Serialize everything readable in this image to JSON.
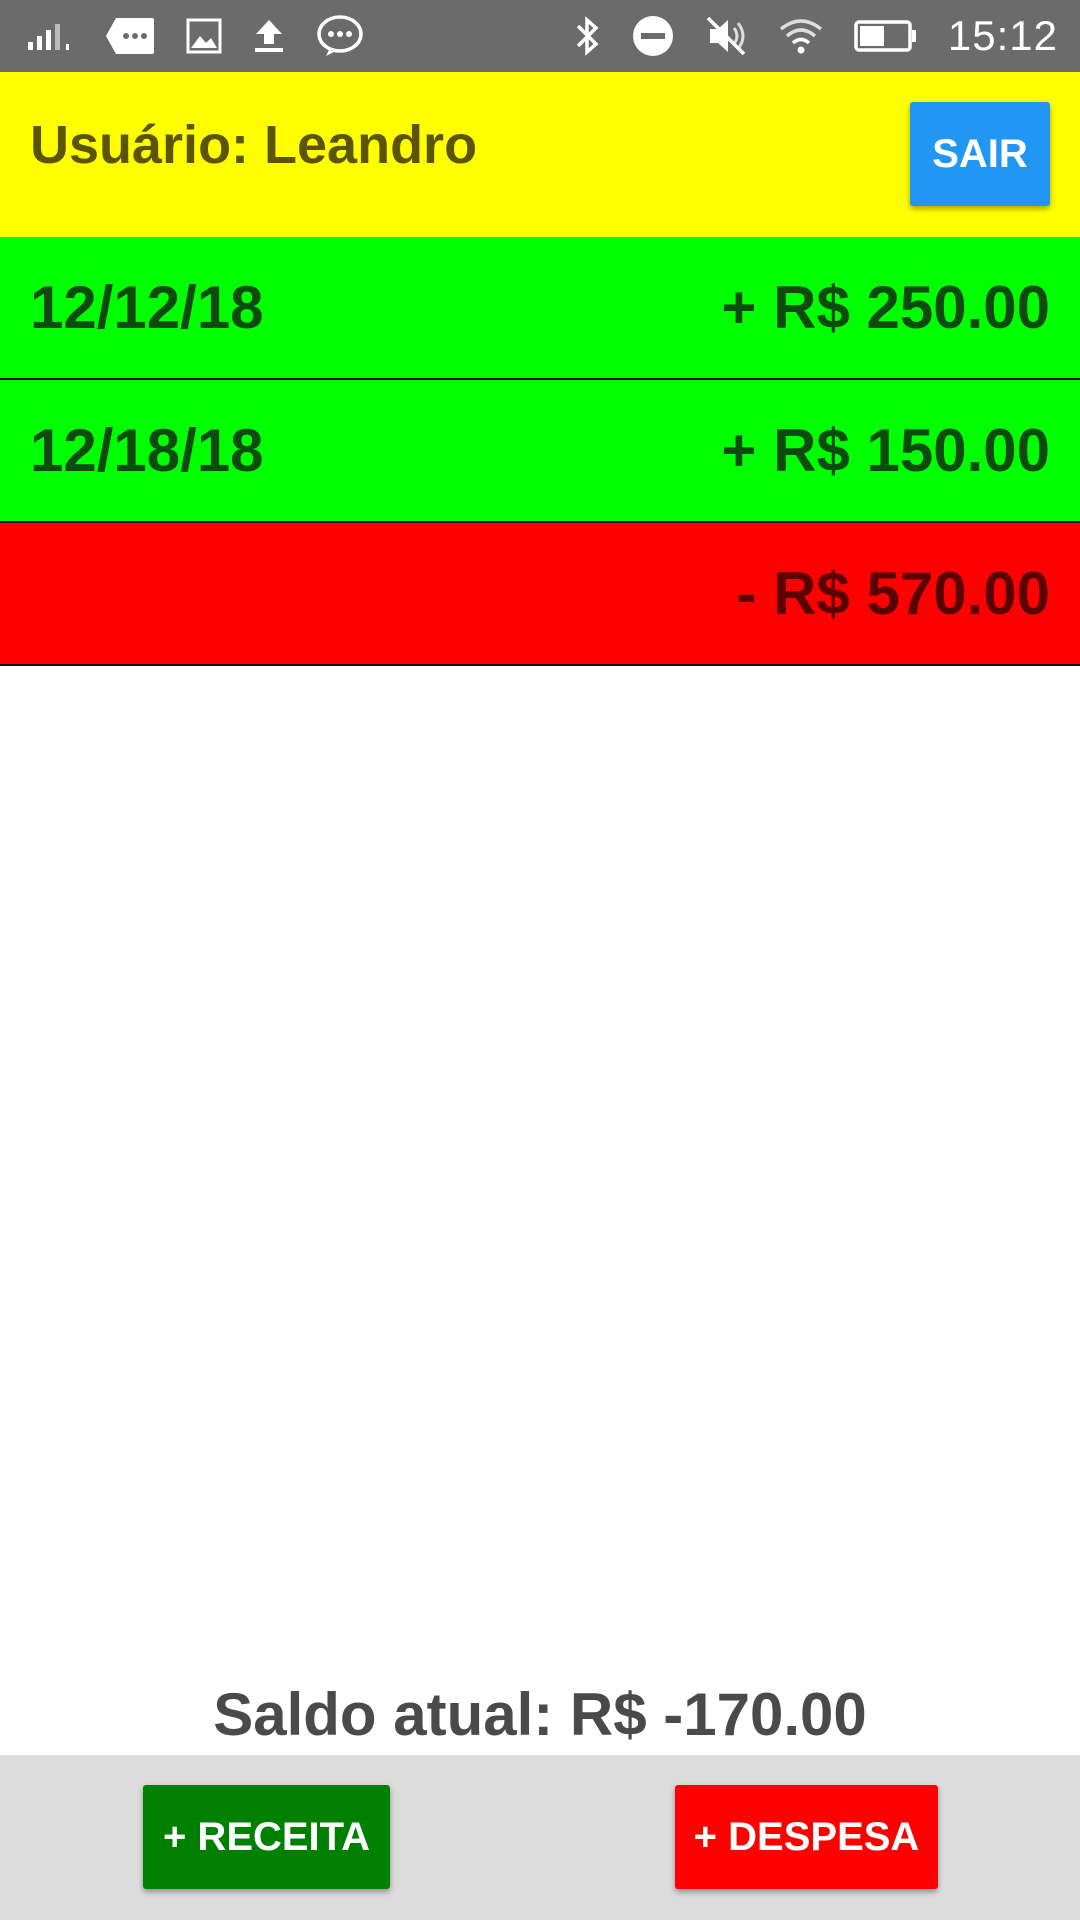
{
  "status_bar": {
    "time": "15:12",
    "icons_left": [
      "signal-icon",
      "message-icon",
      "image-icon",
      "upload-icon",
      "chat-icon"
    ],
    "icons_right": [
      "bluetooth-icon",
      "do-not-disturb-icon",
      "mute-icon",
      "wifi-icon",
      "battery-icon"
    ]
  },
  "header": {
    "user_label": "Usuário: Leandro",
    "logout_label": "SAIR",
    "background": "#ffff00",
    "button_color": "#2196f3"
  },
  "entries": [
    {
      "type": "income",
      "date": "12/12/18",
      "amount": "+ R$ 250.00",
      "color": "#00ff00"
    },
    {
      "type": "income",
      "date": "12/18/18",
      "amount": "+ R$ 150.00",
      "color": "#00ff00"
    },
    {
      "type": "expense",
      "date": "",
      "amount": "- R$ 570.00",
      "color": "#ff0000"
    }
  ],
  "balance": {
    "label": "Saldo atual: R$ -170.00"
  },
  "bottom_bar": {
    "income_button": "+ RECEITA",
    "expense_button": "+ DESPESA",
    "income_color": "#008000",
    "expense_color": "#ff0000"
  }
}
